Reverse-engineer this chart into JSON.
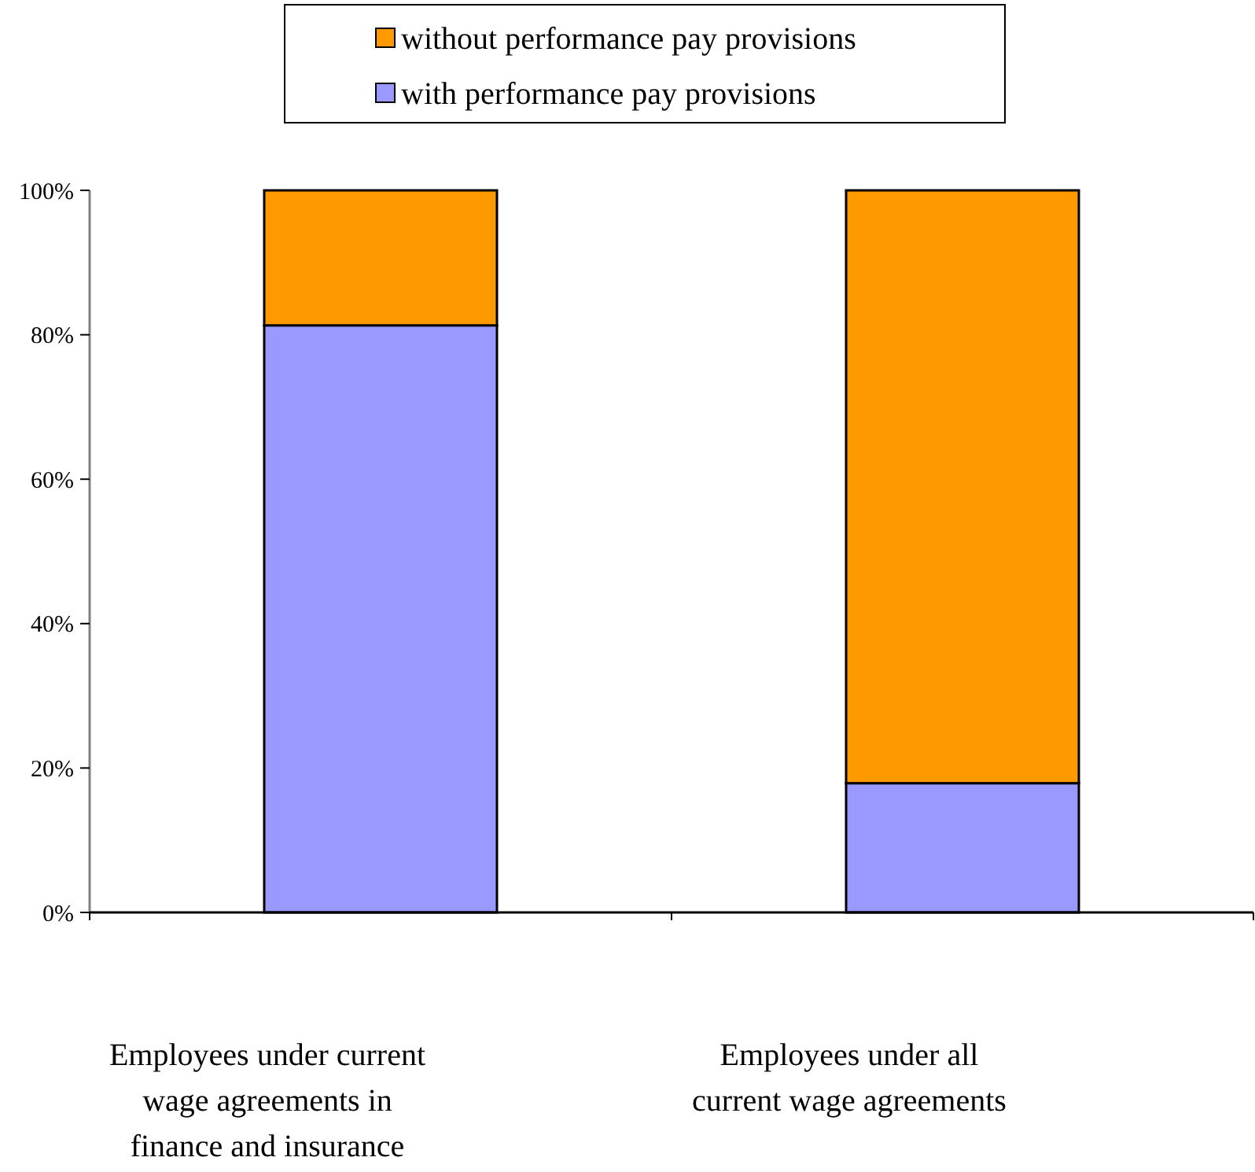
{
  "chart_data": {
    "type": "bar",
    "stacked": true,
    "categories": [
      "Employees under current\nwage agreements in\nfinance and insurance",
      "Employees under all\ncurrent wage agreements"
    ],
    "series": [
      {
        "name": "with performance pay provisions",
        "color": "#9999ff",
        "values": [
          81.3,
          17.9
        ]
      },
      {
        "name": "without performance pay provisions",
        "color": "#ff9900",
        "values": [
          18.7,
          82.1
        ]
      }
    ],
    "ylim": [
      0,
      100
    ],
    "yticks": [
      {
        "value": 0,
        "label": "0%"
      },
      {
        "value": 20,
        "label": "20%"
      },
      {
        "value": 40,
        "label": "40%"
      },
      {
        "value": 60,
        "label": "60%"
      },
      {
        "value": 80,
        "label": "80%"
      },
      {
        "value": 100,
        "label": "100%"
      }
    ],
    "grid": false,
    "legend": "top"
  }
}
